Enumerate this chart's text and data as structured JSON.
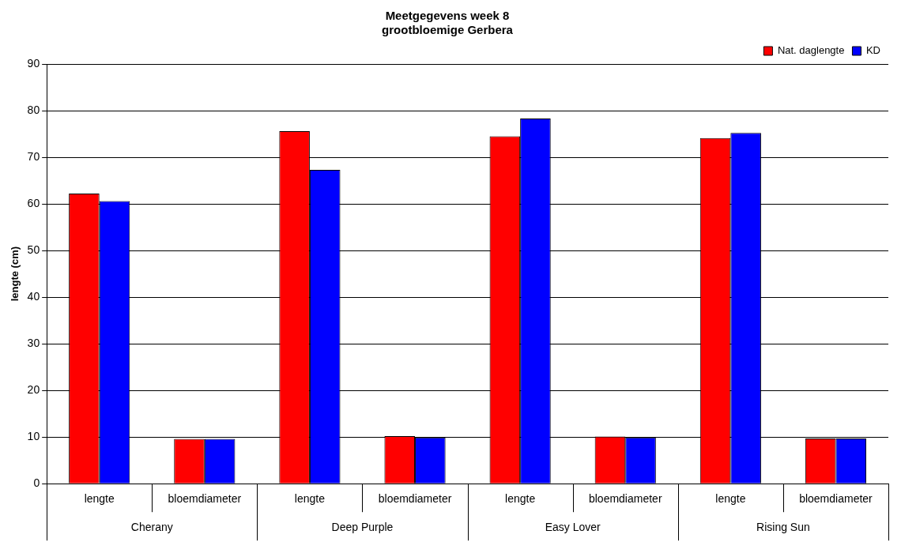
{
  "chart_data": {
    "type": "bar",
    "title": [
      "Meetgegevens week 8",
      "grootbloemige Gerbera"
    ],
    "ylabel": "lengte (cm)",
    "categories": [
      "lengte",
      "bloemdiameter",
      "lengte",
      "bloemdiameter",
      "lengte",
      "bloemdiameter",
      "lengte",
      "bloemdiameter"
    ],
    "annotations": [
      "Cherany",
      "Deep Purple",
      "Easy Lover",
      "Rising Sun"
    ],
    "series": [
      {
        "name": "Nat. daglengte",
        "color": "#ff0000",
        "values": [
          62.2,
          9.6,
          75.6,
          10.2,
          74.5,
          10.1,
          74.1,
          9.7
        ]
      },
      {
        "name": "KD",
        "color": "#0000ff",
        "values": [
          60.6,
          9.6,
          67.3,
          9.9,
          78.3,
          9.9,
          75.2,
          9.7
        ]
      }
    ],
    "ylim": [
      0,
      90
    ],
    "yticks": [
      0,
      10,
      20,
      30,
      40,
      50,
      60,
      70,
      80,
      90
    ],
    "grid": "y",
    "legend": "top right"
  }
}
